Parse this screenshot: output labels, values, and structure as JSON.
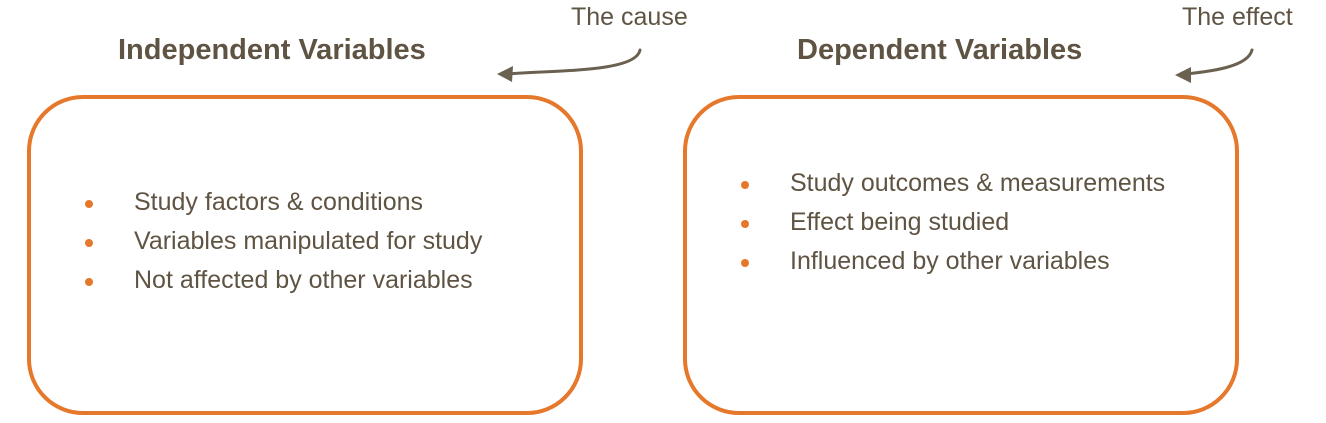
{
  "colors": {
    "accent": "#e5782a",
    "text": "#5f5443",
    "arrow": "#6b6150"
  },
  "left_panel": {
    "title": "Independent Variables",
    "annotation": "The cause",
    "items": [
      "Study factors & conditions",
      "Variables manipulated for study",
      "Not affected by other variables"
    ]
  },
  "right_panel": {
    "title": "Dependent Variables",
    "annotation": "The effect",
    "items": [
      "Study outcomes & measurements",
      "Effect being studied",
      "Influenced by other variables"
    ]
  }
}
